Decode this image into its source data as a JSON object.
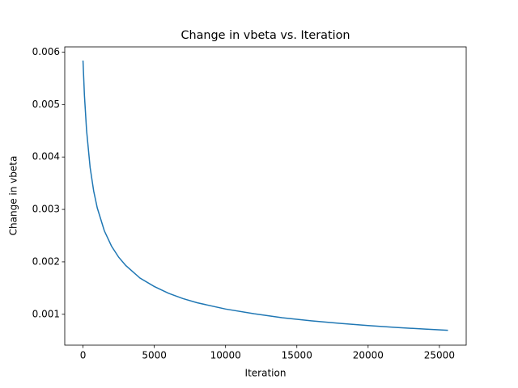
{
  "chart_data": {
    "type": "line",
    "title": "Change in vbeta vs. Iteration",
    "x_label": "Iteration",
    "y_label": "Change in vbeta",
    "x": [
      0,
      100,
      250,
      500,
      750,
      1000,
      1500,
      2000,
      2500,
      3000,
      4000,
      5000,
      6000,
      7000,
      8000,
      10000,
      12000,
      14000,
      16000,
      18000,
      20000,
      22000,
      24000,
      25600
    ],
    "series": [
      {
        "name": "Change in vbeta",
        "color": "#1f77b4",
        "values": [
          0.00584,
          0.00518,
          0.00451,
          0.0038,
          0.00335,
          0.00303,
          0.00259,
          0.0023,
          0.00209,
          0.00193,
          0.00169,
          0.00153,
          0.0014,
          0.0013,
          0.00122,
          0.0011,
          0.00101,
          0.000934,
          0.000876,
          0.000827,
          0.000785,
          0.000749,
          0.000717,
          0.000695
        ]
      }
    ],
    "xlim": [
      -1280,
      26880
    ],
    "ylim": [
      0.000411,
      0.0061
    ],
    "xticks": [
      0,
      5000,
      10000,
      15000,
      20000,
      25000
    ],
    "yticks": [
      0.001,
      0.002,
      0.003,
      0.004,
      0.005,
      0.006
    ],
    "grid": false
  }
}
